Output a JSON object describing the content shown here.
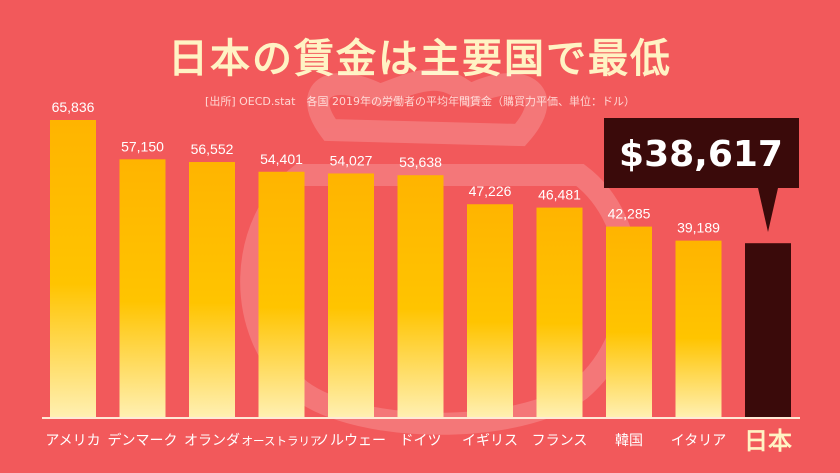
{
  "title": "日本の賃金は主要国で最低",
  "source": "[出所] OECD.stat　各国 2019年の労働者の平均年間賃金（購買力平価、単位：ドル）",
  "colors": {
    "background": "#f2595b",
    "bar_top": "#ffb400",
    "bar_bottom": "#fff0b3",
    "japan_bar": "#3a0a0a",
    "callout": "#3a0a0a",
    "callout_text": "#ffffff",
    "label_text": "#ffffff"
  },
  "chart_data": {
    "type": "bar",
    "categories": [
      "アメリカ",
      "デンマーク",
      "オランダ",
      "オーストラリア",
      "ノルウェー",
      "ドイツ",
      "イギリス",
      "フランス",
      "韓国",
      "イタリア",
      "日本"
    ],
    "values": [
      65836,
      57150,
      56552,
      54401,
      54027,
      53638,
      47226,
      46481,
      42285,
      39189,
      38617
    ],
    "value_labels": [
      "65,836",
      "57,150",
      "56,552",
      "54,401",
      "54,027",
      "53,638",
      "47,226",
      "46,481",
      "42,285",
      "39,189",
      ""
    ],
    "highlight": {
      "category": "日本",
      "label": "$38,617"
    },
    "xlabel": "",
    "ylabel": "",
    "ylim": [
      0,
      65836
    ],
    "grid": false
  }
}
